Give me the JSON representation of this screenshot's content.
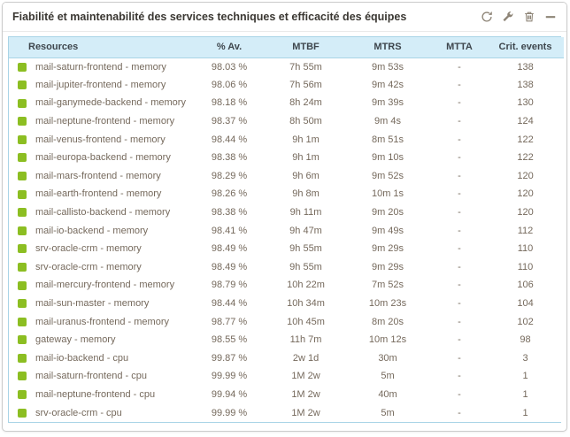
{
  "widget": {
    "title": "Fiabilité et maintenabilité des services techniques et efficacité des équipes",
    "toolbar_icons": [
      {
        "name": "refresh-icon"
      },
      {
        "name": "wrench-icon"
      },
      {
        "name": "trash-icon"
      },
      {
        "name": "minimize-icon"
      }
    ]
  },
  "colors": {
    "status_ok": "#8CBE22",
    "header_bg": "#d4edf8",
    "table_border": "#a9d4e6",
    "row_text": "#75695c",
    "icon_gray": "#8d8476"
  },
  "table": {
    "columns": [
      "Resources",
      "% Av.",
      "MTBF",
      "MTRS",
      "MTTA",
      "Crit. events"
    ],
    "rows": [
      {
        "status": "ok",
        "resource": "mail-saturn-frontend - memory",
        "availability": "98.03 %",
        "mtbf": "7h 55m",
        "mtrs": "9m 53s",
        "mtta": "-",
        "crit_events": "138"
      },
      {
        "status": "ok",
        "resource": "mail-jupiter-frontend - memory",
        "availability": "98.06 %",
        "mtbf": "7h 56m",
        "mtrs": "9m 42s",
        "mtta": "-",
        "crit_events": "138"
      },
      {
        "status": "ok",
        "resource": "mail-ganymede-backend - memory",
        "availability": "98.18 %",
        "mtbf": "8h 24m",
        "mtrs": "9m 39s",
        "mtta": "-",
        "crit_events": "130"
      },
      {
        "status": "ok",
        "resource": "mail-neptune-frontend - memory",
        "availability": "98.37 %",
        "mtbf": "8h 50m",
        "mtrs": "9m 4s",
        "mtta": "-",
        "crit_events": "124"
      },
      {
        "status": "ok",
        "resource": "mail-venus-frontend - memory",
        "availability": "98.44 %",
        "mtbf": "9h 1m",
        "mtrs": "8m 51s",
        "mtta": "-",
        "crit_events": "122"
      },
      {
        "status": "ok",
        "resource": "mail-europa-backend - memory",
        "availability": "98.38 %",
        "mtbf": "9h 1m",
        "mtrs": "9m 10s",
        "mtta": "-",
        "crit_events": "122"
      },
      {
        "status": "ok",
        "resource": "mail-mars-frontend - memory",
        "availability": "98.29 %",
        "mtbf": "9h 6m",
        "mtrs": "9m 52s",
        "mtta": "-",
        "crit_events": "120"
      },
      {
        "status": "ok",
        "resource": "mail-earth-frontend - memory",
        "availability": "98.26 %",
        "mtbf": "9h 8m",
        "mtrs": "10m 1s",
        "mtta": "-",
        "crit_events": "120"
      },
      {
        "status": "ok",
        "resource": "mail-callisto-backend - memory",
        "availability": "98.38 %",
        "mtbf": "9h 11m",
        "mtrs": "9m 20s",
        "mtta": "-",
        "crit_events": "120"
      },
      {
        "status": "ok",
        "resource": "mail-io-backend - memory",
        "availability": "98.41 %",
        "mtbf": "9h 47m",
        "mtrs": "9m 49s",
        "mtta": "-",
        "crit_events": "112"
      },
      {
        "status": "ok",
        "resource": "srv-oracle-crm - memory",
        "availability": "98.49 %",
        "mtbf": "9h 55m",
        "mtrs": "9m 29s",
        "mtta": "-",
        "crit_events": "110"
      },
      {
        "status": "ok",
        "resource": "srv-oracle-crm - memory",
        "availability": "98.49 %",
        "mtbf": "9h 55m",
        "mtrs": "9m 29s",
        "mtta": "-",
        "crit_events": "110"
      },
      {
        "status": "ok",
        "resource": "mail-mercury-frontend - memory",
        "availability": "98.79 %",
        "mtbf": "10h 22m",
        "mtrs": "7m 52s",
        "mtta": "-",
        "crit_events": "106"
      },
      {
        "status": "ok",
        "resource": "mail-sun-master - memory",
        "availability": "98.44 %",
        "mtbf": "10h 34m",
        "mtrs": "10m 23s",
        "mtta": "-",
        "crit_events": "104"
      },
      {
        "status": "ok",
        "resource": "mail-uranus-frontend - memory",
        "availability": "98.77 %",
        "mtbf": "10h 45m",
        "mtrs": "8m 20s",
        "mtta": "-",
        "crit_events": "102"
      },
      {
        "status": "ok",
        "resource": "gateway - memory",
        "availability": "98.55 %",
        "mtbf": "11h 7m",
        "mtrs": "10m 12s",
        "mtta": "-",
        "crit_events": "98"
      },
      {
        "status": "ok",
        "resource": "mail-io-backend - cpu",
        "availability": "99.87 %",
        "mtbf": "2w 1d",
        "mtrs": "30m",
        "mtta": "-",
        "crit_events": "3"
      },
      {
        "status": "ok",
        "resource": "mail-saturn-frontend - cpu",
        "availability": "99.99 %",
        "mtbf": "1M 2w",
        "mtrs": "5m",
        "mtta": "-",
        "crit_events": "1"
      },
      {
        "status": "ok",
        "resource": "mail-neptune-frontend - cpu",
        "availability": "99.94 %",
        "mtbf": "1M 2w",
        "mtrs": "40m",
        "mtta": "-",
        "crit_events": "1"
      },
      {
        "status": "ok",
        "resource": "srv-oracle-crm - cpu",
        "availability": "99.99 %",
        "mtbf": "1M 2w",
        "mtrs": "5m",
        "mtta": "-",
        "crit_events": "1"
      }
    ]
  }
}
